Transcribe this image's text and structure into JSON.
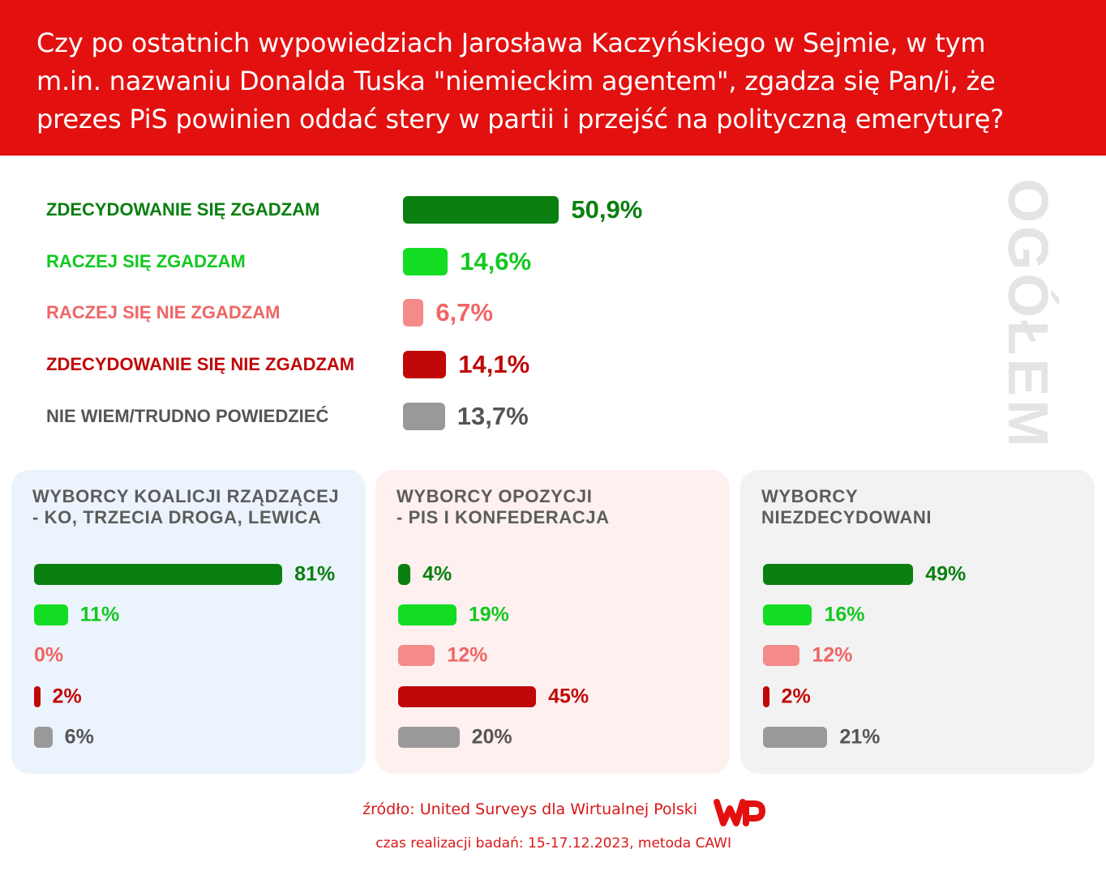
{
  "header": {
    "question_lines": [
      "Czy po ostatnich wypowiedziach Jarosława Kaczyńskiego w Sejmie, w tym",
      "m.in. nazwaniu Donalda Tuska \"niemieckim agentem\", zgadza się Pan/i, że",
      "prezes PiS powinien oddać stery w partii i przejść na polityczną emeryturę?"
    ]
  },
  "side_label": "OGÓŁEM",
  "colors": {
    "header_bg": "#e31010",
    "strong_yes": "#0a8010",
    "yes": "#12dd22",
    "no": "#f48a8a",
    "strong_no": "#c00808",
    "unknown": "#999999"
  },
  "chart_data": [
    {
      "type": "bar",
      "orientation": "horizontal",
      "title": "",
      "categories": [
        "ZDECYDOWANIE SIĘ ZGADZAM",
        "RACZEJ SIĘ ZGADZAM",
        "RACZEJ SIĘ NIE ZGADZAM",
        "ZDECYDOWANIE SIĘ NIE ZGADZAM",
        "NIE WIEM/TRUDNO POWIEDZIEĆ"
      ],
      "values": [
        50.9,
        14.6,
        6.7,
        14.1,
        13.7
      ],
      "value_labels": [
        "50,9%",
        "14,6%",
        "6,7%",
        "14,1%",
        "13,7%"
      ],
      "label_colors": [
        "#0a8010",
        "#12c820",
        "#f06565",
        "#c00808",
        "#555555"
      ],
      "bar_colors": [
        "#0a8010",
        "#12dd22",
        "#f48a8a",
        "#c00808",
        "#999999"
      ]
    },
    {
      "type": "bar",
      "orientation": "horizontal",
      "title": "WYBORCY KOALICJI RZĄDZĄCEJ\n- KO, TRZECIA DROGA, LEWICA",
      "values": [
        81,
        11,
        0,
        2,
        6
      ],
      "value_labels": [
        "81%",
        "11%",
        "0%",
        "2%",
        "6%"
      ]
    },
    {
      "type": "bar",
      "orientation": "horizontal",
      "title": "WYBORCY OPOZYCJI\n- PIS I KONFEDERACJA",
      "values": [
        4,
        19,
        12,
        45,
        20
      ],
      "value_labels": [
        "4%",
        "19%",
        "12%",
        "45%",
        "20%"
      ]
    },
    {
      "type": "bar",
      "orientation": "horizontal",
      "title": "WYBORCY\nNIEZDECYDOWANI",
      "values": [
        49,
        16,
        12,
        2,
        21
      ],
      "value_labels": [
        "49%",
        "16%",
        "12%",
        "2%",
        "21%"
      ]
    }
  ],
  "panels": [
    {
      "bg": "#ebf3fc"
    },
    {
      "bg": "#fdf0ef"
    },
    {
      "bg": "#f2f2f2"
    }
  ],
  "footer": {
    "source": "źródło: United Surveys dla Wirtualnej Polski",
    "method": "czas realizacji badań: 15-17.12.2023, metoda CAWI",
    "logo_color": "#e31010"
  }
}
